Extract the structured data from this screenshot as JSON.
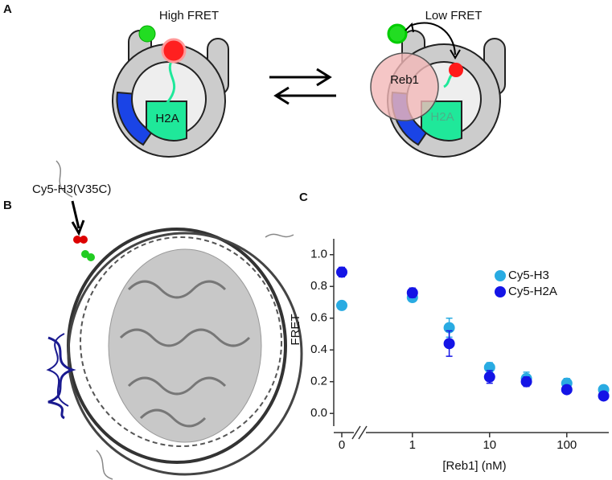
{
  "panels": {
    "a": {
      "label": "A",
      "left_state": "High FRET",
      "right_state": "Low FRET",
      "left_histone": "H2A",
      "right_histone": "H2A",
      "protein": "Reb1"
    },
    "b": {
      "label": "B",
      "annotation": "Cy5-H3(V35C)"
    },
    "c": {
      "label": "C"
    }
  },
  "chart_data": {
    "type": "scatter",
    "x_label": "[Reb1] (nM)",
    "y_label": "FRET",
    "x": [
      0,
      1,
      3,
      10,
      30,
      100,
      300
    ],
    "x_log": true,
    "x_break": true,
    "xlim": [
      0.25,
      350
    ],
    "xticks": [
      0,
      1,
      10,
      100
    ],
    "ylim": [
      -0.08,
      1.1
    ],
    "yticks": [
      {
        "value": 0,
        "label": "0.0"
      },
      {
        "value": 0.2,
        "label": "0.2"
      },
      {
        "value": 0.4,
        "label": "0.4"
      },
      {
        "value": 0.6,
        "label": "0.6"
      },
      {
        "value": 0.8,
        "label": "0.8"
      },
      {
        "value": 1,
        "label": "1.0"
      }
    ],
    "grid": false,
    "legend": "upper right",
    "series": [
      {
        "name": "Cy5-H3",
        "color": "#29abe2",
        "values": [
          0.68,
          0.73,
          0.54,
          0.29,
          0.22,
          0.19,
          0.15
        ],
        "errors": [
          0.01,
          0.02,
          0.06,
          0.03,
          0.04,
          0.03,
          0.02
        ]
      },
      {
        "name": "Cy5-H2A",
        "color": "#1414e6",
        "values": [
          0.89,
          0.76,
          0.44,
          0.23,
          0.2,
          0.15,
          0.11
        ],
        "errors": [
          0.03,
          0.03,
          0.08,
          0.04,
          0.03,
          0.02,
          0.01
        ]
      }
    ]
  }
}
